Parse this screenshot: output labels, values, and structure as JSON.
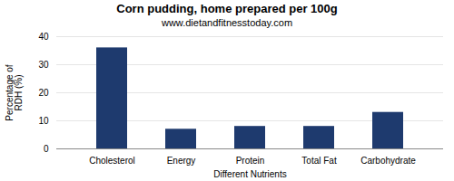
{
  "chart_data": {
    "type": "bar",
    "title": "Corn pudding, home prepared per 100g",
    "subtitle": "www.dietandfitnesstoday.com",
    "xlabel": "Different Nutrients",
    "ylabel": "Percentage of\nRDH (%)",
    "categories": [
      "Cholesterol",
      "Energy",
      "Protein",
      "Total Fat",
      "Carbohydrate"
    ],
    "values": [
      36,
      7,
      8,
      8,
      13
    ],
    "color": "#1e3a6e",
    "ylim": [
      0,
      40
    ],
    "yticks": [
      0,
      10,
      20,
      30,
      40
    ],
    "grid": true
  }
}
